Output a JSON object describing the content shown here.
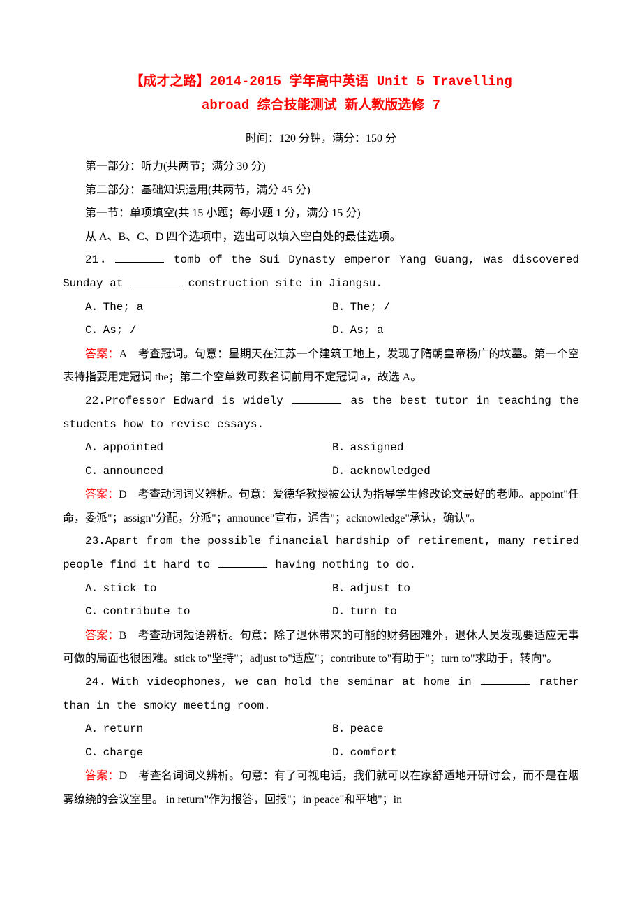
{
  "title_line1": "【成才之路】2014-2015 学年高中英语 Unit 5 Travelling",
  "title_line2": "abroad 综合技能测试 新人教版选修 7",
  "time_info": "时间：120 分钟，满分：150 分",
  "part1": "第一部分：听力(共两节；满分 30 分)",
  "part2": "第二部分：基础知识运用(共两节，满分 45 分)",
  "section1": "第一节：单项填空(共 15 小题；每小题 1 分，满分 15 分)",
  "instruction": "从 A、B、C、D 四个选项中，选出可以填入空白处的最佳选项。",
  "q21": {
    "num": "21．",
    "text_before": " tomb of the Sui Dynasty emperor Yang Guang, was discovered Sunday at ",
    "text_after": " construction site in Jiangsu.",
    "optA": "A．The; a",
    "optB": "B．The; /",
    "optC": "C．As; /",
    "optD": "D．As; a",
    "answer_label": "答案：",
    "answer_text": "A　考查冠词。句意：星期天在江苏一个建筑工地上，发现了隋朝皇帝杨广的坟墓。第一个空表特指要用定冠词 the；第二个空单数可数名词前用不定冠词 a，故选 A。"
  },
  "q22": {
    "num": "22.",
    "text_before": "Professor Edward is widely ",
    "text_after": " as the best tutor in teaching the students how to revise essays.",
    "optA": "A．appointed",
    "optB": "B．assigned",
    "optC": "C．announced",
    "optD": "D．acknowledged",
    "answer_label": "答案：",
    "answer_text": "D　考查动词词义辨析。句意：爱德华教授被公认为指导学生修改论文最好的老师。appoint\"任命，委派\"；assign\"分配，分派\"；announce\"宣布，通告\"；acknowledge\"承认，确认\"。"
  },
  "q23": {
    "num": "23.",
    "text_before": "Apart from the possible financial hardship of retirement, many retired people find it hard to ",
    "text_after": " having nothing to do.",
    "optA": "A．stick to",
    "optB": "B．adjust to",
    "optC": "C．contribute to",
    "optD": "D．turn to",
    "answer_label": "答案：",
    "answer_text": "B　考查动词短语辨析。句意：除了退休带来的可能的财务困难外，退休人员发现要适应无事可做的局面也很困难。stick to\"坚持\"；adjust to\"适应\"；contribute to\"有助于\"；turn to\"求助于，转向\"。"
  },
  "q24": {
    "num": "24．",
    "text_before": "With videophones, we can hold the seminar at home in ",
    "text_after": " rather than in the smoky meeting room.",
    "optA": "A．return",
    "optB": "B．peace",
    "optC": "C．charge",
    "optD": "D．comfort",
    "answer_label": "答案：",
    "answer_text": "D　考查名词词义辨析。句意：有了可视电话，我们就可以在家舒适地开研讨会，而不是在烟雾缭绕的会议室里。 in return\"作为报答，回报\"；in peace\"和平地\"；in"
  },
  "colors": {
    "title_color": "#ff0000",
    "answer_color": "#ff0000",
    "text_color": "#000000",
    "background": "#ffffff"
  }
}
